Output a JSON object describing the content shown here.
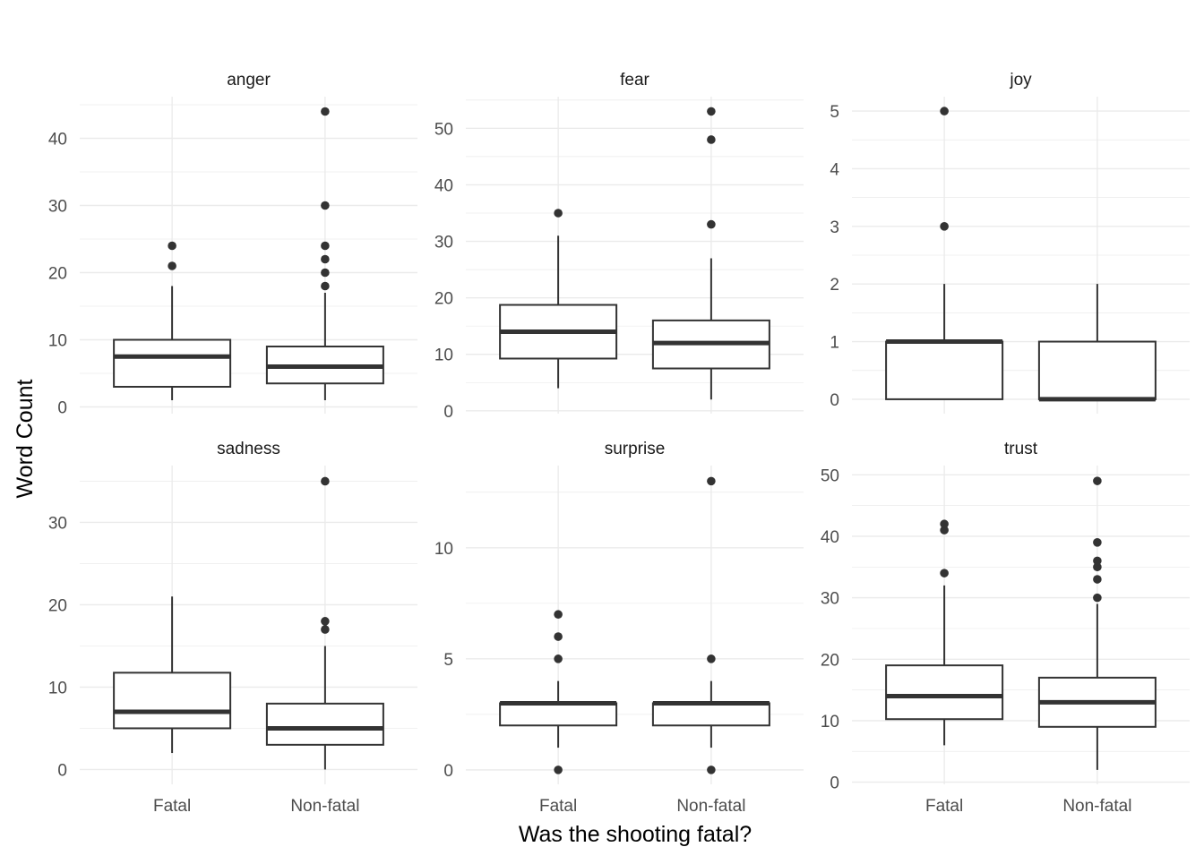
{
  "chart_data": {
    "type": "boxplot",
    "layout": "facet grid 2 rows x 3 columns, free y scales",
    "xlabel": "Was the shooting fatal?",
    "ylabel": "Word Count",
    "categories": [
      "Fatal",
      "Non-fatal"
    ],
    "panels": [
      {
        "title": "anger",
        "ylim": [
          -1,
          46.2
        ],
        "yticks": [
          0,
          10,
          20,
          30,
          40
        ],
        "boxes": [
          {
            "category": "Fatal",
            "min": 1,
            "q1": 3,
            "median": 7.5,
            "q3": 10,
            "max": 18,
            "outliers": [
              21,
              24
            ]
          },
          {
            "category": "Non-fatal",
            "min": 1,
            "q1": 3.5,
            "median": 6,
            "q3": 9,
            "max": 17,
            "outliers": [
              18,
              20,
              22,
              24,
              30,
              44
            ]
          }
        ]
      },
      {
        "title": "fear",
        "ylim": [
          -0.5,
          55.6
        ],
        "yticks": [
          0,
          10,
          20,
          30,
          40,
          50
        ],
        "boxes": [
          {
            "category": "Fatal",
            "min": 4,
            "q1": 9.25,
            "median": 14,
            "q3": 18.75,
            "max": 31,
            "outliers": [
              35
            ]
          },
          {
            "category": "Non-fatal",
            "min": 2,
            "q1": 7.5,
            "median": 12,
            "q3": 16,
            "max": 27,
            "outliers": [
              33,
              48,
              53
            ]
          }
        ]
      },
      {
        "title": "joy",
        "ylim": [
          -0.25,
          5.25
        ],
        "yticks": [
          0,
          1,
          2,
          3,
          4,
          5
        ],
        "boxes": [
          {
            "category": "Fatal",
            "min": 0,
            "q1": 0,
            "median": 1,
            "q3": 1,
            "max": 2,
            "outliers": [
              3,
              5
            ]
          },
          {
            "category": "Non-fatal",
            "min": 0,
            "q1": 0,
            "median": 0,
            "q3": 1,
            "max": 2,
            "outliers": []
          }
        ]
      },
      {
        "title": "sadness",
        "ylim": [
          -1.8,
          36.9
        ],
        "yticks": [
          0,
          10,
          20,
          30
        ],
        "boxes": [
          {
            "category": "Fatal",
            "min": 2,
            "q1": 5,
            "median": 7,
            "q3": 11.75,
            "max": 21,
            "outliers": []
          },
          {
            "category": "Non-fatal",
            "min": 0,
            "q1": 3,
            "median": 5,
            "q3": 8,
            "max": 15,
            "outliers": [
              17,
              18,
              35
            ]
          }
        ]
      },
      {
        "title": "surprise",
        "ylim": [
          -0.65,
          13.7
        ],
        "yticks": [
          0,
          5,
          10
        ],
        "boxes": [
          {
            "category": "Fatal",
            "min": 1,
            "q1": 2,
            "median": 3,
            "q3": 3,
            "max": 4,
            "outliers": [
              0,
              5,
              6,
              7
            ]
          },
          {
            "category": "Non-fatal",
            "min": 1,
            "q1": 2,
            "median": 3,
            "q3": 3,
            "max": 4,
            "outliers": [
              0,
              5,
              13
            ]
          }
        ]
      },
      {
        "title": "trust",
        "ylim": [
          -0.35,
          51.5
        ],
        "yticks": [
          0,
          10,
          20,
          30,
          40,
          50
        ],
        "boxes": [
          {
            "category": "Fatal",
            "min": 6,
            "q1": 10.25,
            "median": 14,
            "q3": 19,
            "max": 32,
            "outliers": [
              34,
              41,
              42
            ]
          },
          {
            "category": "Non-fatal",
            "min": 2,
            "q1": 9,
            "median": 13,
            "q3": 17,
            "max": 29,
            "outliers": [
              30,
              33,
              35,
              36,
              39,
              49
            ]
          }
        ]
      }
    ],
    "grid": true,
    "legend": "none"
  }
}
